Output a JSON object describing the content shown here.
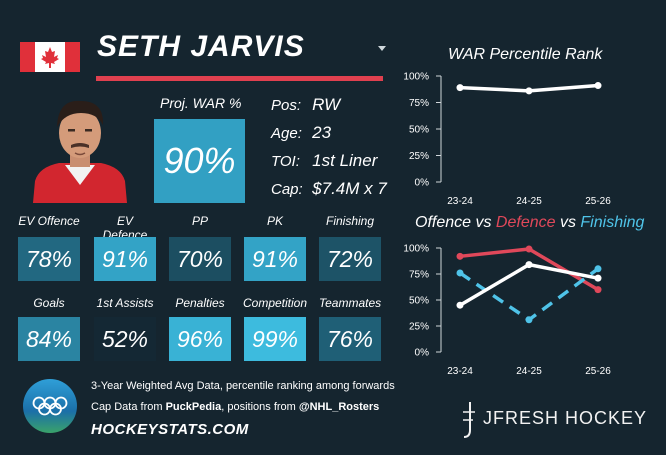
{
  "player": {
    "name": "SETH JARVIS",
    "flag_icon": "canada-flag-icon",
    "photo_icon": "player-headshot-icon"
  },
  "war": {
    "label": "Proj. WAR %",
    "value": "90%",
    "fill": 0.9
  },
  "info": [
    {
      "key": "Pos:",
      "value": "RW"
    },
    {
      "key": "Age:",
      "value": "23"
    },
    {
      "key": "TOI:",
      "value": "1st Liner"
    },
    {
      "key": "Cap:",
      "value": "$7.4M x 7"
    }
  ],
  "stats": [
    {
      "label": "EV Offence",
      "value": "78%",
      "pct": 78
    },
    {
      "label": "EV Defence",
      "value": "91%",
      "pct": 91
    },
    {
      "label": "PP",
      "value": "70%",
      "pct": 70
    },
    {
      "label": "PK",
      "value": "91%",
      "pct": 91
    },
    {
      "label": "Finishing",
      "value": "72%",
      "pct": 72
    },
    {
      "label": "Goals",
      "value": "84%",
      "pct": 84
    },
    {
      "label": "1st Assists",
      "value": "52%",
      "pct": 52
    },
    {
      "label": "Penalties",
      "value": "96%",
      "pct": 96
    },
    {
      "label": "Competition",
      "value": "99%",
      "pct": 99
    },
    {
      "label": "Teammates",
      "value": "76%",
      "pct": 76
    }
  ],
  "footer": {
    "line1": "3-Year Weighted Avg Data, percentile ranking among forwards",
    "line2_a": "Cap Data from ",
    "line2_b": "PuckPedia",
    "line2_c": ", positions from ",
    "line2_d": "@NHL_Rosters",
    "site": "HOCKEYSTATS.COM",
    "brand": "JFRESH HOCKEY",
    "olympics_icon": "olympic-rings-icon",
    "brand_icon": "jfresh-logo-icon"
  },
  "colors": {
    "background": "#15252f",
    "accent_red": "#e0404f",
    "offence": "#ffffff",
    "defence": "#e0485a",
    "finishing": "#4fc3e8"
  },
  "chart_data": [
    {
      "type": "line",
      "title": "WAR Percentile Rank",
      "categories": [
        "23-24",
        "24-25",
        "25-26"
      ],
      "yticks": [
        "0%",
        "25%",
        "50%",
        "75%",
        "100%"
      ],
      "ylim": [
        0,
        100
      ],
      "series": [
        {
          "values": [
            89,
            86,
            91
          ],
          "color": "#ffffff"
        }
      ]
    },
    {
      "type": "line",
      "title_parts": [
        {
          "text": "Offence",
          "color": "#ffffff"
        },
        {
          "text": " vs ",
          "color": "#ffffff"
        },
        {
          "text": "Defence",
          "color": "#e0485a"
        },
        {
          "text": " vs ",
          "color": "#ffffff"
        },
        {
          "text": "Finishing",
          "color": "#4fc3e8"
        }
      ],
      "categories": [
        "23-24",
        "24-25",
        "25-26"
      ],
      "yticks": [
        "0%",
        "25%",
        "50%",
        "75%",
        "100%"
      ],
      "ylim": [
        0,
        100
      ],
      "series": [
        {
          "name": "Defence",
          "values": [
            92,
            99,
            60
          ],
          "color": "#e0485a",
          "dash": false
        },
        {
          "name": "Finishing",
          "values": [
            76,
            31,
            80
          ],
          "color": "#4fc3e8",
          "dash": true
        },
        {
          "name": "Offence",
          "values": [
            45,
            84,
            71
          ],
          "color": "#ffffff",
          "dash": false
        }
      ]
    }
  ]
}
